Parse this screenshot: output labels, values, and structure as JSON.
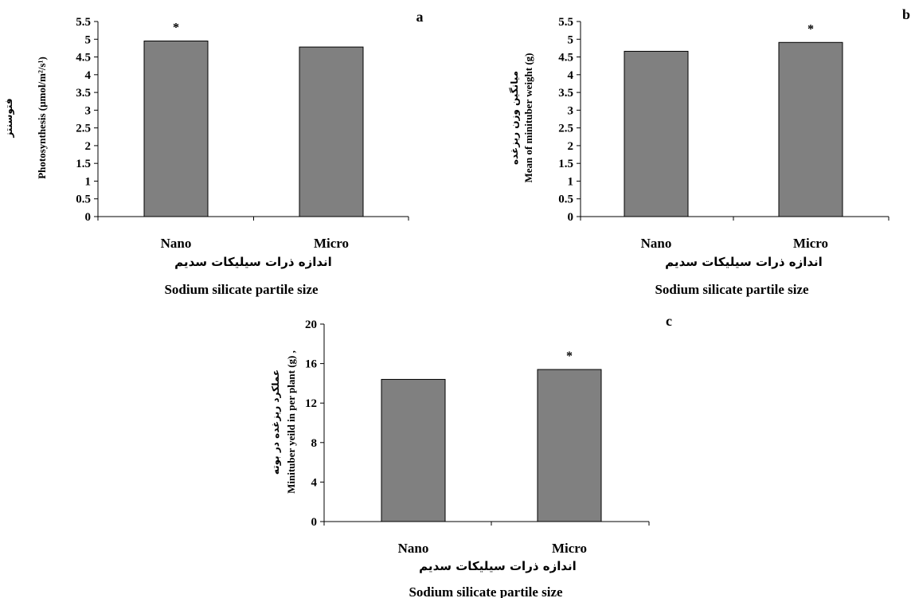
{
  "chart_data": [
    {
      "panel": "a",
      "type": "bar",
      "categories": [
        "Nano",
        "Micro"
      ],
      "values": [
        4.95,
        4.78
      ],
      "significance": [
        "*",
        ""
      ],
      "ylim": [
        0,
        5.5
      ],
      "yticks": [
        "0",
        "0.5",
        "1",
        "1.5",
        "2",
        "2.5",
        "3",
        "3.5",
        "4",
        "4.5",
        "5",
        "5.5"
      ],
      "ylabel": "Photosynthesis (µmol/m²/s¹)",
      "ylabel_fa": "فتوسنتز",
      "xlabel": "Sodium silicate partile size",
      "xlabel_fa": "اندازه ذرات سیلیکات سدیم",
      "grid": false,
      "bar_color": "#808080"
    },
    {
      "panel": "b",
      "type": "bar",
      "categories": [
        "Nano",
        "Micro"
      ],
      "values": [
        4.66,
        4.91
      ],
      "significance": [
        "",
        "*"
      ],
      "ylim": [
        0,
        5.5
      ],
      "yticks": [
        "0",
        "0.5",
        "1",
        "1.5",
        "2",
        "2.5",
        "3",
        "3.5",
        "4",
        "4.5",
        "5",
        "5.5"
      ],
      "ylabel": "Mean of minituber weight (g)",
      "ylabel_fa": "میانگین وزن ریزغده",
      "xlabel": "Sodium silicate partile size",
      "xlabel_fa": "اندازه ذرات سیلیکات سدیم",
      "grid": false,
      "bar_color": "#808080"
    },
    {
      "panel": "c",
      "type": "bar",
      "categories": [
        "Nano",
        "Micro"
      ],
      "values": [
        14.4,
        15.4
      ],
      "significance": [
        "",
        "*"
      ],
      "ylim": [
        0,
        20
      ],
      "yticks": [
        "0",
        "4",
        "8",
        "12",
        "16",
        "20"
      ],
      "ylabel": "Minituber yeild in per plant (g) ,",
      "ylabel_fa": "عملکرد ریزغده در بوته",
      "xlabel": "Sodium silicate partile size",
      "xlabel_fa": "اندازه ذرات سیلیکات سدیم",
      "grid": false,
      "bar_color": "#808080"
    }
  ]
}
